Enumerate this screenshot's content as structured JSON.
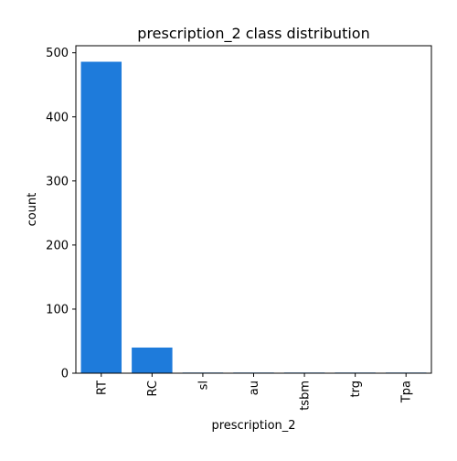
{
  "chart_data": {
    "type": "bar",
    "title": "prescription_2 class distribution",
    "xlabel": "prescription_2",
    "ylabel": "count",
    "categories": [
      "RT",
      "RC",
      "sl",
      "au",
      "tsbm",
      "trg",
      "Tpa"
    ],
    "values": [
      486,
      40,
      1,
      1,
      1,
      1,
      1
    ],
    "ylim": [
      0,
      511
    ],
    "yticks": [
      0,
      100,
      200,
      300,
      400,
      500
    ],
    "bar_color": "#1e7bdb",
    "grid": false,
    "legend": "none"
  }
}
